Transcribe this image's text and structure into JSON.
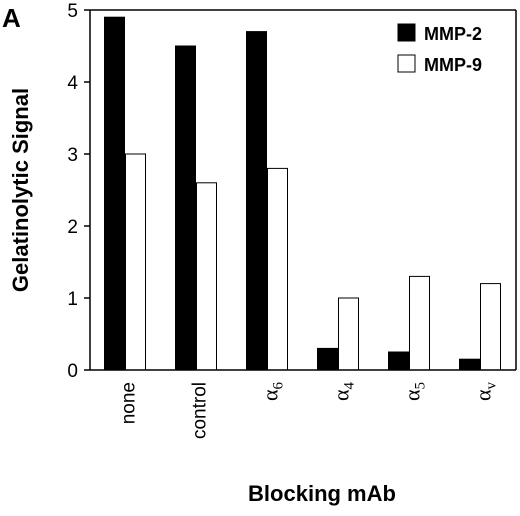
{
  "panel_label": "A",
  "chart_data": {
    "type": "bar",
    "categories": [
      {
        "base": "none",
        "sub": ""
      },
      {
        "base": "control",
        "sub": ""
      },
      {
        "base": "α",
        "sub": "6"
      },
      {
        "base": "α",
        "sub": "4"
      },
      {
        "base": "α",
        "sub": "5"
      },
      {
        "base": "α",
        "sub": "v"
      }
    ],
    "series": [
      {
        "name": "MMP-2",
        "color": "#000000",
        "values": [
          4.9,
          4.5,
          4.7,
          0.3,
          0.25,
          0.15
        ]
      },
      {
        "name": "MMP-9",
        "color": "#ffffff",
        "values": [
          3.0,
          2.6,
          2.8,
          1.0,
          1.3,
          1.2
        ]
      }
    ],
    "xlabel": "Blocking mAb",
    "ylabel": "Gelatinolytic Signal",
    "ylim": [
      0,
      5
    ],
    "yticks": [
      "0",
      "1",
      "2",
      "3",
      "4",
      "5"
    ],
    "grid": false,
    "legend_position": "top-right"
  }
}
